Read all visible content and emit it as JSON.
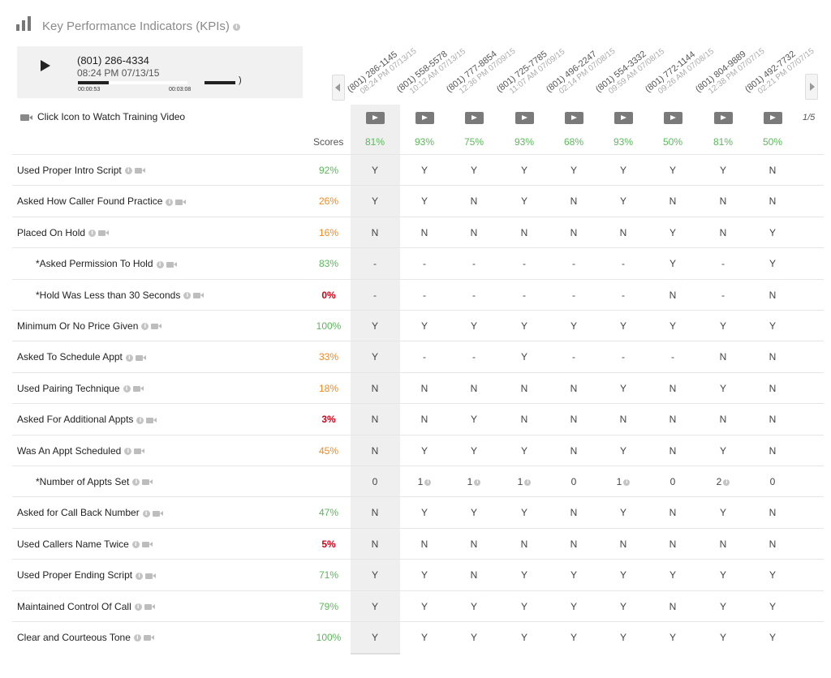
{
  "header": {
    "title": "Key Performance Indicators (KPIs)"
  },
  "player": {
    "phone": "(801) 286-4334",
    "datetime": "08:24 PM 07/13/15",
    "current_time": "00:00:53",
    "total_time": "00:03:08",
    "progress_fraction": 0.28
  },
  "video_caption": "Click Icon to Watch Training Video",
  "page_indicator": "1/5",
  "scores_label": "Scores",
  "colors": {
    "good": "#5cb85c",
    "medium": "#f08a24",
    "bad": "#d0021b"
  },
  "calls": [
    {
      "phone": "(801) 286-1145",
      "datetime": "08:24 PM 07/13/15",
      "score": "81%"
    },
    {
      "phone": "(801) 558-5578",
      "datetime": "10:12 AM 07/13/15",
      "score": "93%"
    },
    {
      "phone": "(801) 777-8854",
      "datetime": "12:36 PM 07/09/15",
      "score": "75%"
    },
    {
      "phone": "(801) 725-7785",
      "datetime": "11:07 AM 07/09/15",
      "score": "93%"
    },
    {
      "phone": "(801) 496-2247",
      "datetime": "02:14 PM 07/08/15",
      "score": "68%"
    },
    {
      "phone": "(801) 554-3332",
      "datetime": "09:59 AM 07/08/15",
      "score": "93%"
    },
    {
      "phone": "(801) 772-1144",
      "datetime": "09:26 AM 07/08/15",
      "score": "50%"
    },
    {
      "phone": "(801) 804-9889",
      "datetime": "12:38 PM 07/07/15",
      "score": "81%"
    },
    {
      "phone": "(801) 492-7732",
      "datetime": "02:21 PM 07/07/15",
      "score": "50%"
    }
  ],
  "rows": [
    {
      "label": "Used Proper Intro Script",
      "score": "92%",
      "level": "good",
      "sub": false,
      "values": [
        "Y",
        "Y",
        "Y",
        "Y",
        "Y",
        "Y",
        "Y",
        "Y",
        "N"
      ]
    },
    {
      "label": "Asked How Caller Found Practice",
      "score": "26%",
      "level": "medium",
      "sub": false,
      "values": [
        "Y",
        "Y",
        "N",
        "Y",
        "N",
        "Y",
        "N",
        "N",
        "N"
      ]
    },
    {
      "label": "Placed On Hold",
      "score": "16%",
      "level": "medium",
      "sub": false,
      "values": [
        "N",
        "N",
        "N",
        "N",
        "N",
        "N",
        "Y",
        "N",
        "Y"
      ]
    },
    {
      "label": "*Asked Permission To Hold",
      "score": "83%",
      "level": "good",
      "sub": true,
      "values": [
        "-",
        "-",
        "-",
        "-",
        "-",
        "-",
        "Y",
        "-",
        "Y"
      ]
    },
    {
      "label": "*Hold Was Less than 30 Seconds",
      "score": "0%",
      "level": "bad",
      "sub": true,
      "values": [
        "-",
        "-",
        "-",
        "-",
        "-",
        "-",
        "N",
        "-",
        "N"
      ]
    },
    {
      "label": "Minimum Or No Price Given",
      "score": "100%",
      "level": "good",
      "sub": false,
      "values": [
        "Y",
        "Y",
        "Y",
        "Y",
        "Y",
        "Y",
        "Y",
        "Y",
        "Y"
      ]
    },
    {
      "label": "Asked To Schedule Appt",
      "score": "33%",
      "level": "medium",
      "sub": false,
      "values": [
        "Y",
        "-",
        "-",
        "Y",
        "-",
        "-",
        "-",
        "N",
        "N"
      ]
    },
    {
      "label": "Used Pairing Technique",
      "score": "18%",
      "level": "medium",
      "sub": false,
      "values": [
        "N",
        "N",
        "N",
        "N",
        "N",
        "Y",
        "N",
        "Y",
        "N"
      ]
    },
    {
      "label": "Asked For Additional Appts",
      "score": "3%",
      "level": "bad",
      "sub": false,
      "values": [
        "N",
        "N",
        "Y",
        "N",
        "N",
        "N",
        "N",
        "N",
        "N"
      ]
    },
    {
      "label": "Was An Appt Scheduled",
      "score": "45%",
      "level": "medium",
      "sub": false,
      "values": [
        "N",
        "Y",
        "Y",
        "Y",
        "N",
        "Y",
        "N",
        "Y",
        "N"
      ]
    },
    {
      "label": "*Number of Appts Set",
      "score": "",
      "level": "good",
      "sub": true,
      "values": [
        "0",
        "1",
        "1",
        "1",
        "0",
        "1",
        "0",
        "2",
        "0"
      ],
      "info": [
        false,
        true,
        true,
        true,
        false,
        true,
        false,
        true,
        false
      ]
    },
    {
      "label": "Asked for Call Back Number",
      "score": "47%",
      "level": "good",
      "sub": false,
      "values": [
        "N",
        "Y",
        "Y",
        "Y",
        "N",
        "Y",
        "N",
        "Y",
        "N"
      ]
    },
    {
      "label": "Used Callers Name Twice",
      "score": "5%",
      "level": "bad",
      "sub": false,
      "values": [
        "N",
        "N",
        "N",
        "N",
        "N",
        "N",
        "N",
        "N",
        "N"
      ]
    },
    {
      "label": "Used Proper Ending Script",
      "score": "71%",
      "level": "good",
      "sub": false,
      "values": [
        "Y",
        "Y",
        "N",
        "Y",
        "Y",
        "Y",
        "Y",
        "Y",
        "Y"
      ]
    },
    {
      "label": "Maintained Control Of Call",
      "score": "79%",
      "level": "good",
      "sub": false,
      "values": [
        "Y",
        "Y",
        "Y",
        "Y",
        "Y",
        "Y",
        "N",
        "Y",
        "Y"
      ]
    },
    {
      "label": "Clear and Courteous Tone",
      "score": "100%",
      "level": "good",
      "sub": false,
      "values": [
        "Y",
        "Y",
        "Y",
        "Y",
        "Y",
        "Y",
        "Y",
        "Y",
        "Y"
      ]
    }
  ]
}
